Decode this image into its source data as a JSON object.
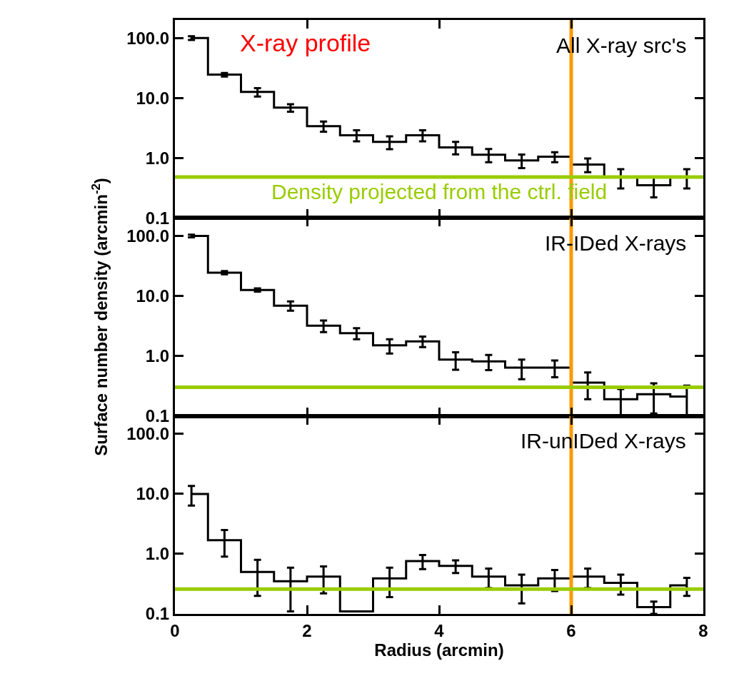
{
  "chart_data": [
    {
      "type": "step",
      "title": "X-ray profile",
      "annotations": [
        "All X-ray src's"
      ],
      "x": [
        0.25,
        0.75,
        1.25,
        1.75,
        2.25,
        2.75,
        3.25,
        3.75,
        4.25,
        4.75,
        5.25,
        5.75,
        6.25,
        6.75,
        7.25,
        7.75
      ],
      "values": [
        100,
        24.5,
        12.6,
        6.9,
        3.4,
        2.4,
        1.85,
        2.4,
        1.5,
        1.13,
        0.91,
        1.05,
        0.78,
        0.48,
        0.35,
        0.48
      ],
      "errors": [
        7,
        1.7,
        2,
        1.0,
        0.65,
        0.5,
        0.45,
        0.5,
        0.35,
        0.28,
        0.23,
        0.2,
        0.2,
        0.17,
        0.13,
        0.17
      ],
      "color": "#000000",
      "xlim": [
        0,
        8
      ],
      "xticks": [
        0,
        2,
        4,
        6,
        8
      ],
      "ylim": [
        0.1,
        200
      ],
      "log": "y",
      "yticks": [
        {
          "value": 0.1,
          "label": "0.1"
        },
        {
          "value": 1,
          "label": "1.0"
        },
        {
          "value": 10,
          "label": "10.0"
        },
        {
          "value": 100,
          "label": "100.0"
        }
      ],
      "tick_labels": "y",
      "ref_lines": [
        {
          "axis": "y",
          "value": 0.48,
          "label": "Density projected from the ctrl. field",
          "color": "#99cc00"
        },
        {
          "axis": "x",
          "value": 6,
          "label": null,
          "color": "#ff9900"
        }
      ]
    },
    {
      "type": "step",
      "ylabel": "Surface number density (arcmin$^{-2}$)",
      "annotations": [
        "IR-IDed X-rays"
      ],
      "x": [
        0.25,
        0.75,
        1.25,
        1.75,
        2.25,
        2.75,
        3.25,
        3.75,
        4.25,
        4.75,
        5.25,
        5.75,
        6.25,
        6.75,
        7.25,
        7.75
      ],
      "values": [
        100,
        24.5,
        12.6,
        6.9,
        3.2,
        2.4,
        1.5,
        1.75,
        0.87,
        0.81,
        0.64,
        0.64,
        0.36,
        0.19,
        0.23,
        0.21
      ],
      "errors": [
        5,
        1.5,
        0.8,
        1.2,
        0.7,
        0.5,
        0.4,
        0.35,
        0.28,
        0.23,
        0.23,
        0.2,
        0.17,
        0.09,
        0.12,
        0.11
      ],
      "color": "#000000",
      "xlim": [
        0,
        8
      ],
      "xticks": [
        0,
        2,
        4,
        6,
        8
      ],
      "ylim": [
        0.1,
        200
      ],
      "log": "y",
      "yticks": [
        {
          "value": 0.1,
          "label": "0.1"
        },
        {
          "value": 1,
          "label": "1.0"
        },
        {
          "value": 10,
          "label": "10.0"
        },
        {
          "value": 100,
          "label": "100.0"
        }
      ],
      "tick_labels": "y",
      "ref_lines": [
        {
          "axis": "y",
          "value": 0.3,
          "label": null,
          "color": "#99cc00"
        },
        {
          "axis": "x",
          "value": 6,
          "label": null,
          "color": "#ff9900"
        }
      ]
    },
    {
      "type": "step",
      "xlabel": "Radius (arcmin)",
      "annotations": [
        "IR-unIDed X-rays"
      ],
      "x": [
        0.25,
        0.75,
        1.25,
        1.75,
        2.25,
        2.75,
        3.25,
        3.75,
        4.25,
        4.75,
        5.25,
        5.75,
        6.25,
        6.75,
        7.25,
        7.75
      ],
      "values": [
        10,
        1.7,
        0.5,
        0.35,
        0.42,
        0.11,
        0.39,
        0.76,
        0.63,
        0.42,
        0.3,
        0.39,
        0.42,
        0.33,
        0.13,
        0.3
      ],
      "errors": [
        3.6,
        0.8,
        0.3,
        0.24,
        0.2,
        null,
        0.2,
        0.2,
        0.15,
        0.15,
        0.15,
        0.15,
        0.15,
        0.12,
        0.03,
        0.1
      ],
      "color": "#000000",
      "xlim": [
        0,
        8
      ],
      "xticks": [
        0,
        2,
        4,
        6,
        8
      ],
      "ylim": [
        0.1,
        200
      ],
      "log": "y",
      "yticks": [
        {
          "value": 0.1,
          "label": "0.1"
        },
        {
          "value": 1,
          "label": "1.0"
        },
        {
          "value": 10,
          "label": "10.0"
        },
        {
          "value": 100,
          "label": "100.0"
        }
      ],
      "ref_lines": [
        {
          "axis": "y",
          "value": 0.26,
          "label": null,
          "color": "#99cc00"
        },
        {
          "axis": "x",
          "value": 6,
          "label": null,
          "color": "#ff9900"
        }
      ]
    }
  ]
}
